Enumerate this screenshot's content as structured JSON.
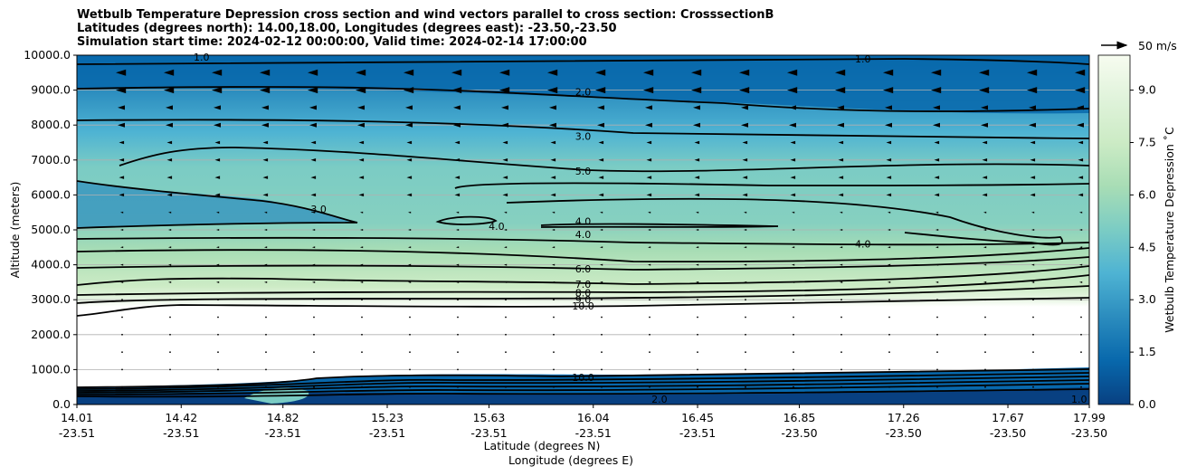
{
  "titles": {
    "line1": "Wetbulb Temperature Depression cross section and wind vectors parallel to cross section: CrosssectionB",
    "line2": "Latitudes (degrees north): 14.00,18.00, Longitudes (degrees east): -23.50,-23.50",
    "line3": "Simulation start time: 2024-02-12 00:00:00, Valid time: 2024-02-14 17:00:00"
  },
  "chart_data": {
    "type": "contour",
    "title": "Wetbulb Temperature Depression cross section and wind vectors parallel to cross section: CrosssectionB",
    "ylabel": "Altitude (meters)",
    "xlabel": "Latitude (degrees N)",
    "xlabel2": "Longitude (degrees E)",
    "ylim": [
      0,
      10000
    ],
    "y_ticks": [
      "0.0",
      "1000.0",
      "2000.0",
      "3000.0",
      "4000.0",
      "5000.0",
      "6000.0",
      "7000.0",
      "8000.0",
      "9000.0",
      "10000.0"
    ],
    "x_ticks": [
      {
        "lat": "14.01",
        "lon": "-23.51"
      },
      {
        "lat": "14.42",
        "lon": "-23.51"
      },
      {
        "lat": "14.82",
        "lon": "-23.51"
      },
      {
        "lat": "15.23",
        "lon": "-23.51"
      },
      {
        "lat": "15.63",
        "lon": "-23.51"
      },
      {
        "lat": "16.04",
        "lon": "-23.51"
      },
      {
        "lat": "16.45",
        "lon": "-23.51"
      },
      {
        "lat": "16.85",
        "lon": "-23.50"
      },
      {
        "lat": "17.26",
        "lon": "-23.50"
      },
      {
        "lat": "17.67",
        "lon": "-23.50"
      },
      {
        "lat": "17.99",
        "lon": "-23.50"
      }
    ],
    "colorbar": {
      "label": "Wetbulb Temperature Depression ˚C",
      "range": [
        0,
        10
      ],
      "ticks": [
        "0.0",
        "1.5",
        "3.0",
        "4.5",
        "6.0",
        "7.5",
        "9.0"
      ],
      "colors": [
        "#084081",
        "#0868ac",
        "#2b8cbe",
        "#4eb3d3",
        "#7bccc4",
        "#a8ddb5",
        "#ccebc5",
        "#e0f3db",
        "#f7fcf0"
      ]
    },
    "contour_labels": [
      {
        "text": "1.0",
        "lat": 14.5,
        "alt": 9950
      },
      {
        "text": "1.0",
        "lat": 17.1,
        "alt": 9900
      },
      {
        "text": "2.0",
        "lat": 16.0,
        "alt": 8950
      },
      {
        "text": "3.0",
        "lat": 16.0,
        "alt": 7680
      },
      {
        "text": "5.0",
        "lat": 16.0,
        "alt": 6680
      },
      {
        "text": "3.0",
        "lat": 14.96,
        "alt": 5600
      },
      {
        "text": "4.0",
        "lat": 16.0,
        "alt": 5250
      },
      {
        "text": "4.0",
        "lat": 16.0,
        "alt": 4870
      },
      {
        "text": "4.0",
        "lat": 15.66,
        "alt": 5100
      },
      {
        "text": "4.0",
        "lat": 17.1,
        "alt": 4600
      },
      {
        "text": "6.0",
        "lat": 16.0,
        "alt": 3880
      },
      {
        "text": "7.0",
        "lat": 16.0,
        "alt": 3450
      },
      {
        "text": "8.0",
        "lat": 16.0,
        "alt": 3200
      },
      {
        "text": "9.0",
        "lat": 16.0,
        "alt": 3000
      },
      {
        "text": "10.0",
        "lat": 16.0,
        "alt": 2820
      },
      {
        "text": "10.0",
        "lat": 16.0,
        "alt": 780
      },
      {
        "text": "2.0",
        "lat": 16.3,
        "alt": 150
      },
      {
        "text": "1.0",
        "lat": 17.95,
        "alt": 150
      }
    ],
    "contour_levels": [
      1,
      2,
      3,
      4,
      5,
      6,
      7,
      8,
      9,
      10
    ],
    "vector_legend": "50 m/s"
  }
}
